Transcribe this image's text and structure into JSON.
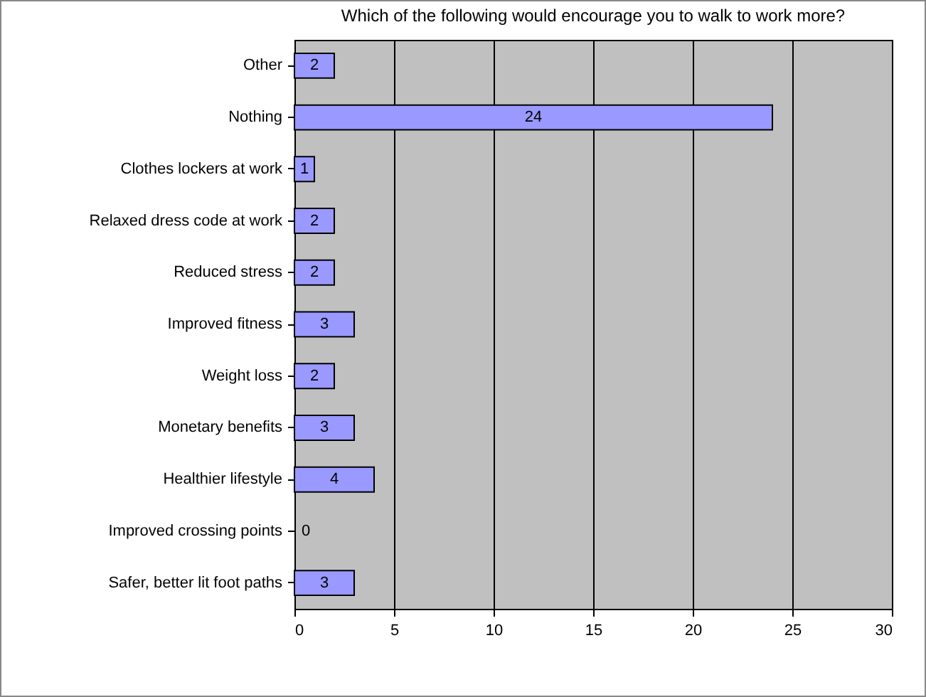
{
  "chart_data": {
    "type": "bar",
    "orientation": "horizontal",
    "title": "Which of the following would encourage you to walk to work more?",
    "categories": [
      "Other",
      "Nothing",
      "Clothes lockers at work",
      "Relaxed dress code at work",
      "Reduced stress",
      "Improved fitness",
      "Weight loss",
      "Monetary benefits",
      "Healthier lifestyle",
      "Improved crossing points",
      "Safer, better lit foot paths"
    ],
    "values": [
      2,
      24,
      1,
      2,
      2,
      3,
      2,
      3,
      4,
      0,
      3
    ],
    "color": "#9999ff",
    "xlim": [
      0,
      30
    ],
    "xticks": [
      0,
      5,
      10,
      15,
      20,
      25,
      30
    ],
    "grid": "x",
    "data_labels": true
  }
}
